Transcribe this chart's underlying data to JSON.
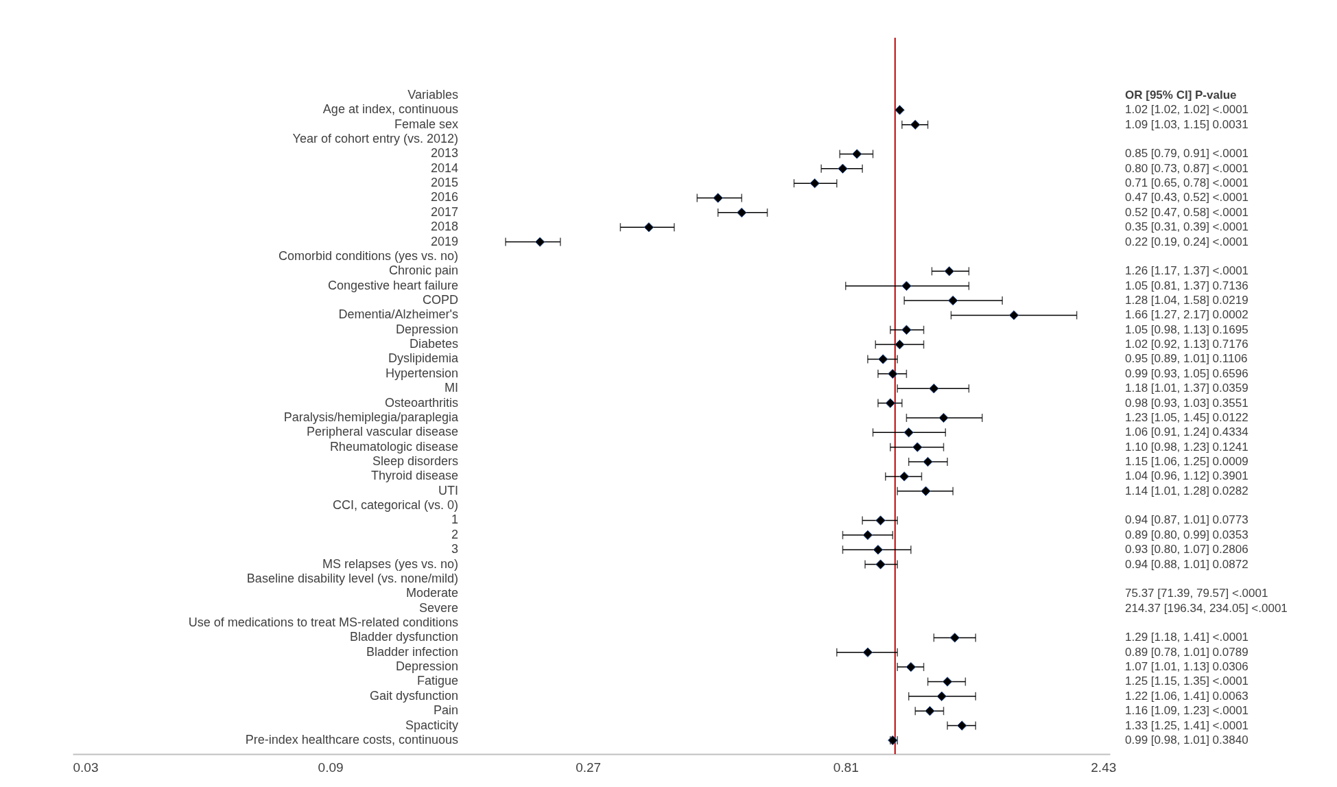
{
  "chart_data": {
    "type": "scatter",
    "orientation": "horizontal",
    "log": "x",
    "marker": "diamond",
    "color": "#000000",
    "grid": false,
    "xlim": [
      0.03,
      2.5
    ],
    "xticks": [
      0.03,
      0.09,
      0.27,
      0.81,
      2.43
    ],
    "annotations": [
      "OR [95% CI] P-value"
    ],
    "ref_lines": [
      {
        "axis": "x",
        "value": 1,
        "color": "#c00000"
      }
    ],
    "categories": [
      "Variables",
      "Age at index, continuous",
      "Female sex",
      "Year of cohort entry (vs. 2012)",
      "2013",
      "2014",
      "2015",
      "2016",
      "2017",
      "2018",
      "2019",
      "Comorbid conditions (yes vs. no)",
      "Chronic pain",
      "Congestive heart failure",
      "COPD",
      "Dementia/Alzheimer's",
      "Depression",
      "Diabetes",
      "Dyslipidemia",
      "Hypertension",
      "MI",
      "Osteoarthritis",
      "Paralysis/hemiplegia/paraplegia",
      "Peripheral vascular disease",
      "Rheumatologic disease",
      "Sleep disorders",
      "Thyroid disease",
      "UTI",
      "CCI, categorical (vs. 0)",
      "1",
      "2",
      "3",
      "MS relapses (yes vs. no)",
      "Baseline disability level (vs. none/mild)",
      "Moderate",
      "Severe",
      "Use of medications to treat MS-related conditions",
      "Bladder dysfunction",
      "Bladder infection",
      "Depression",
      "Fatigue",
      "Gait dysfunction",
      "Pain",
      "Spacticity",
      "Pre-index healthcare costs, continuous"
    ],
    "values": [
      null,
      1.02,
      1.09,
      null,
      0.85,
      0.8,
      0.71,
      0.47,
      0.52,
      0.35,
      0.22,
      null,
      1.26,
      1.05,
      1.28,
      1.66,
      1.05,
      1.02,
      0.95,
      0.99,
      1.18,
      0.98,
      1.23,
      1.06,
      1.1,
      1.15,
      1.04,
      1.14,
      null,
      0.94,
      0.89,
      0.93,
      0.94,
      null,
      null,
      null,
      null,
      1.29,
      0.89,
      1.07,
      1.25,
      1.22,
      1.16,
      1.33,
      0.99
    ],
    "errors": [
      null,
      [
        1.02,
        1.02
      ],
      [
        1.03,
        1.15
      ],
      null,
      [
        0.79,
        0.91
      ],
      [
        0.73,
        0.87
      ],
      [
        0.65,
        0.78
      ],
      [
        0.43,
        0.52
      ],
      [
        0.47,
        0.58
      ],
      [
        0.31,
        0.39
      ],
      [
        0.19,
        0.24
      ],
      null,
      [
        1.17,
        1.37
      ],
      [
        0.81,
        1.37
      ],
      [
        1.04,
        1.58
      ],
      [
        1.27,
        2.17
      ],
      [
        0.98,
        1.13
      ],
      [
        0.92,
        1.13
      ],
      [
        0.89,
        1.01
      ],
      [
        0.93,
        1.05
      ],
      [
        1.01,
        1.37
      ],
      [
        0.93,
        1.03
      ],
      [
        1.05,
        1.45
      ],
      [
        0.91,
        1.24
      ],
      [
        0.98,
        1.23
      ],
      [
        1.06,
        1.25
      ],
      [
        0.96,
        1.12
      ],
      [
        1.01,
        1.28
      ],
      null,
      [
        0.87,
        1.01
      ],
      [
        0.8,
        0.99
      ],
      [
        0.8,
        1.07
      ],
      [
        0.88,
        1.01
      ],
      null,
      null,
      null,
      null,
      [
        1.18,
        1.41
      ],
      [
        0.78,
        1.01
      ],
      [
        1.01,
        1.13
      ],
      [
        1.15,
        1.35
      ],
      [
        1.06,
        1.41
      ],
      [
        1.09,
        1.23
      ],
      [
        1.25,
        1.41
      ],
      [
        0.98,
        1.01
      ]
    ],
    "value_labels": [
      null,
      "1.02 [1.02, 1.02] <.0001",
      "1.09 [1.03, 1.15] 0.0031",
      null,
      "0.85 [0.79, 0.91] <.0001",
      "0.80 [0.73, 0.87] <.0001",
      "0.71 [0.65, 0.78] <.0001",
      "0.47 [0.43, 0.52] <.0001",
      "0.52 [0.47, 0.58] <.0001",
      "0.35 [0.31, 0.39] <.0001",
      "0.22 [0.19, 0.24] <.0001",
      null,
      "1.26 [1.17, 1.37] <.0001",
      "1.05 [0.81, 1.37] 0.7136",
      "1.28 [1.04, 1.58] 0.0219",
      "1.66 [1.27, 2.17] 0.0002",
      "1.05 [0.98, 1.13] 0.1695",
      "1.02 [0.92, 1.13] 0.7176",
      "0.95 [0.89, 1.01] 0.1106",
      "0.99 [0.93, 1.05] 0.6596",
      "1.18 [1.01, 1.37] 0.0359",
      "0.98 [0.93, 1.03] 0.3551",
      "1.23 [1.05, 1.45] 0.0122",
      "1.06 [0.91, 1.24] 0.4334",
      "1.10 [0.98, 1.23] 0.1241",
      "1.15 [1.06, 1.25] 0.0009",
      "1.04 [0.96, 1.12] 0.3901",
      "1.14 [1.01, 1.28] 0.0282",
      null,
      "0.94 [0.87, 1.01] 0.0773",
      "0.89 [0.80, 0.99] 0.0353",
      "0.93 [0.80, 1.07] 0.2806",
      "0.94 [0.88, 1.01] 0.0872",
      null,
      "75.37 [71.39, 79.57] <.0001",
      "214.37 [196.34, 234.05] <.0001",
      null,
      "1.29 [1.18, 1.41] <.0001",
      "0.89 [0.78, 1.01] 0.0789",
      "1.07 [1.01, 1.13] 0.0306",
      "1.25 [1.15, 1.35] <.0001",
      "1.22 [1.06, 1.41] 0.0063",
      "1.16 [1.09, 1.23] <.0001",
      "1.33 [1.25, 1.41] <.0001",
      "0.99 [0.98, 1.01] 0.3840"
    ]
  }
}
